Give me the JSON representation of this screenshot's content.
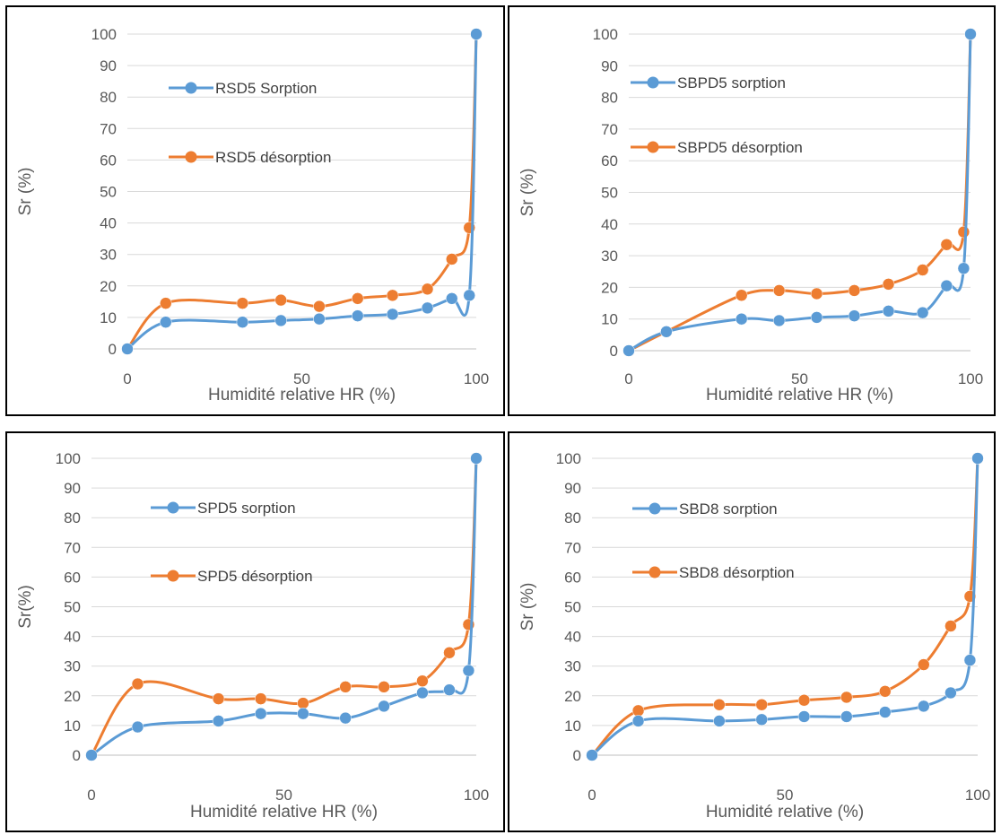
{
  "colors": {
    "sorption": "#5b9bd5",
    "desorption": "#ed7d31",
    "grid": "#d9d9d9",
    "axis": "#bfbfbf"
  },
  "chart_data": [
    {
      "type": "line",
      "xlabel": "Humidité relative HR (%)",
      "ylabel": "Sr (%)",
      "xlim": [
        0,
        100
      ],
      "ylim": [
        0,
        100
      ],
      "xticks": [
        "0",
        "50",
        "100"
      ],
      "yticks": [
        "0",
        "10",
        "20",
        "30",
        "40",
        "50",
        "60",
        "70",
        "80",
        "90",
        "100"
      ],
      "grid": "horizontal",
      "legend": "top-left",
      "series": [
        {
          "name": "RSD5 Sorption",
          "color": "sorption",
          "x": [
            0,
            11,
            33,
            44,
            55,
            66,
            76,
            86,
            93,
            98,
            100
          ],
          "y": [
            0,
            8.5,
            8.5,
            9,
            9.5,
            10.5,
            11,
            13,
            16,
            17,
            100
          ]
        },
        {
          "name": "RSD5 désorption",
          "color": "desorption",
          "x": [
            0,
            11,
            33,
            44,
            55,
            66,
            76,
            86,
            93,
            98,
            100
          ],
          "y": [
            0,
            14.5,
            14.5,
            15.5,
            13.5,
            16,
            17,
            19,
            28.5,
            38.5,
            100
          ]
        }
      ]
    },
    {
      "type": "line",
      "xlabel": "Humidité relative HR (%)",
      "ylabel": "Sr (%)",
      "xlim": [
        0,
        100
      ],
      "ylim": [
        0,
        100
      ],
      "xticks": [
        "0",
        "50",
        "100"
      ],
      "yticks": [
        "0",
        "10",
        "20",
        "30",
        "40",
        "50",
        "60",
        "70",
        "80",
        "90",
        "100"
      ],
      "grid": "horizontal",
      "legend": "top-left",
      "series": [
        {
          "name": "SBPD5 sorption",
          "color": "sorption",
          "x": [
            0,
            11,
            33,
            44,
            55,
            66,
            76,
            86,
            93,
            98,
            100
          ],
          "y": [
            0,
            6,
            10,
            9.5,
            10.5,
            11,
            12.5,
            12,
            20.5,
            26,
            100
          ]
        },
        {
          "name": "SBPD5 désorption",
          "color": "desorption",
          "x": [
            0,
            11,
            33,
            44,
            55,
            66,
            76,
            86,
            93,
            98,
            100
          ],
          "y": [
            0,
            6,
            17.5,
            19,
            18,
            19,
            21,
            25.5,
            33.5,
            37.5,
            100
          ]
        }
      ]
    },
    {
      "type": "line",
      "xlabel": "Humidité relative HR (%)",
      "ylabel": "Sr(%)",
      "xlim": [
        0,
        100
      ],
      "ylim": [
        0,
        100
      ],
      "xticks": [
        "0",
        "50",
        "100"
      ],
      "yticks": [
        "0",
        "10",
        "20",
        "30",
        "40",
        "50",
        "60",
        "70",
        "80",
        "90",
        "100"
      ],
      "grid": "horizontal",
      "legend": "top-left",
      "series": [
        {
          "name": "SPD5 sorption",
          "color": "sorption",
          "x": [
            0,
            12,
            33,
            44,
            55,
            66,
            76,
            86,
            93,
            98,
            100
          ],
          "y": [
            0,
            9.5,
            11.5,
            14,
            14,
            12.5,
            16.5,
            21,
            22,
            28.5,
            100
          ]
        },
        {
          "name": "SPD5 désorption",
          "color": "desorption",
          "x": [
            0,
            12,
            33,
            44,
            55,
            66,
            76,
            86,
            93,
            98,
            100
          ],
          "y": [
            0,
            24,
            19,
            19,
            17.5,
            23,
            23,
            25,
            34.5,
            44,
            100
          ]
        }
      ]
    },
    {
      "type": "line",
      "xlabel": "Humidité relative (%)",
      "ylabel": "Sr (%)",
      "xlim": [
        0,
        100
      ],
      "ylim": [
        0,
        100
      ],
      "xticks": [
        "0",
        "50",
        "100"
      ],
      "yticks": [
        "0",
        "10",
        "20",
        "30",
        "40",
        "50",
        "60",
        "70",
        "80",
        "90",
        "100"
      ],
      "grid": "horizontal",
      "legend": "top-left",
      "series": [
        {
          "name": "SBD8 sorption",
          "color": "sorption",
          "x": [
            0,
            12,
            33,
            44,
            55,
            66,
            76,
            86,
            93,
            98,
            100
          ],
          "y": [
            0,
            11.5,
            11.5,
            12,
            13,
            13,
            14.5,
            16.5,
            21,
            32,
            100
          ]
        },
        {
          "name": "SBD8 désorption",
          "color": "desorption",
          "x": [
            0,
            12,
            33,
            44,
            55,
            66,
            76,
            86,
            93,
            98,
            100
          ],
          "y": [
            0,
            15,
            17,
            17,
            18.5,
            19.5,
            21.5,
            30.5,
            43.5,
            53.5,
            100
          ]
        }
      ]
    }
  ]
}
